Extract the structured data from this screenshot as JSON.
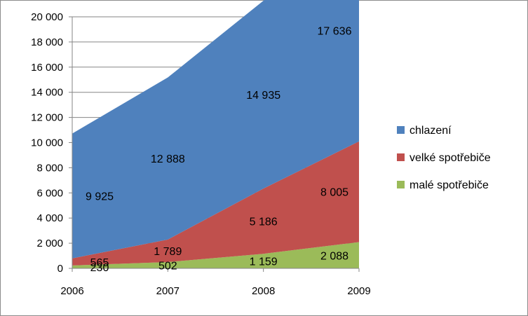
{
  "chart_data": {
    "type": "area",
    "stacked": true,
    "categories": [
      "2006",
      "2007",
      "2008",
      "2009"
    ],
    "series": [
      {
        "name": "malé spotřebiče",
        "values": [
          230,
          502,
          1159,
          2088
        ],
        "labels": [
          "230",
          "502",
          "1 159",
          "2 088"
        ],
        "color": "#9bbb59"
      },
      {
        "name": "velké spotřebiče",
        "values": [
          565,
          1789,
          5186,
          8005
        ],
        "labels": [
          "565",
          "1 789",
          "5 186",
          "8 005"
        ],
        "color": "#c0504d"
      },
      {
        "name": "chlazení",
        "values": [
          9925,
          12888,
          14935,
          17636
        ],
        "labels": [
          "9 925",
          "12 888",
          "14 935",
          "17 636"
        ],
        "color": "#4f81bd"
      }
    ],
    "legend_order": [
      "chlazení",
      "velké spotřebiče",
      "malé spotřebiče"
    ],
    "ylim": [
      0,
      20000
    ],
    "yticks": [
      0,
      2000,
      4000,
      6000,
      8000,
      10000,
      12000,
      14000,
      16000,
      18000,
      20000
    ],
    "ytick_labels": [
      "0",
      "2 000",
      "4 000",
      "6 000",
      "8 000",
      "10 000",
      "12 000",
      "14 000",
      "16 000",
      "18 000",
      "20 000"
    ],
    "grid": true,
    "legend_position": "right",
    "xlabel": "",
    "ylabel": "",
    "title": ""
  }
}
